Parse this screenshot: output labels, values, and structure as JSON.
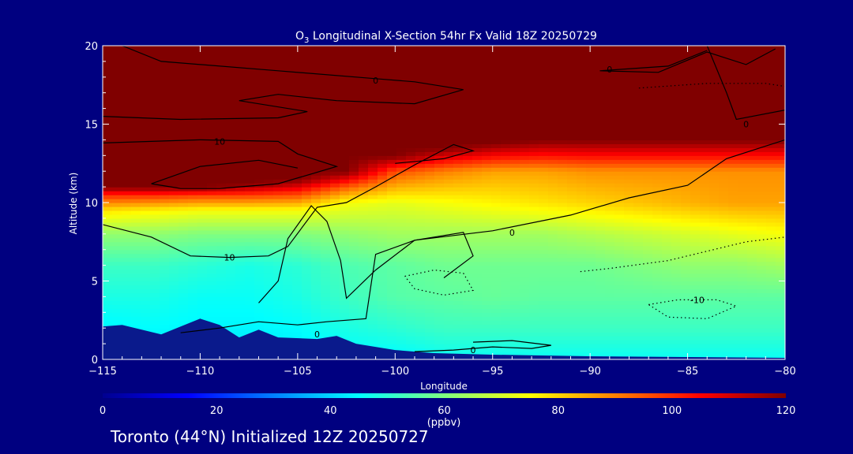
{
  "colors": {
    "background": "#000080",
    "text": "#ffffff",
    "terrain": "#0a1a8c",
    "contour": "#000000"
  },
  "chart_data": {
    "type": "heatmap",
    "title_prefix": "O",
    "title_subscript": "3",
    "title_rest": " Longitudinal X-Section 54hr  Fx Valid 18Z 20250729",
    "xlabel": "Longitude",
    "ylabel": "Altitude (km)",
    "xlim": [
      -115,
      -80
    ],
    "ylim": [
      0,
      20
    ],
    "x_ticks": [
      -115,
      -110,
      -105,
      -100,
      -95,
      -90,
      -85,
      -80
    ],
    "x_tick_labels": [
      "−115",
      "−110",
      "−105",
      "−100",
      "−95",
      "−90",
      "−85",
      "−80"
    ],
    "y_ticks": [
      0,
      5,
      10,
      15,
      20
    ],
    "y_tick_labels": [
      "0",
      "5",
      "10",
      "15",
      "20"
    ],
    "colorbar": {
      "min": 0,
      "max": 120,
      "ticks": [
        0,
        20,
        40,
        60,
        80,
        100,
        120
      ],
      "tick_labels": [
        "0",
        "20",
        "40",
        "60",
        "80",
        "100",
        "120"
      ],
      "units": "(ppbv)",
      "palette": [
        "#00008f",
        "#0000ff",
        "#0080ff",
        "#00ffff",
        "#80ff80",
        "#ffff00",
        "#ff8000",
        "#ff0000",
        "#800000"
      ]
    },
    "columns_lon": [
      -115,
      -112.5,
      -110,
      -107.5,
      -105,
      -102.5,
      -100,
      -97.5,
      -95,
      -92.5,
      -90,
      -87.5,
      -85,
      -82.5,
      -80
    ],
    "column_profiles_km_ppbv": [
      [
        [
          0,
          42
        ],
        [
          2,
          44
        ],
        [
          4,
          48
        ],
        [
          6,
          52
        ],
        [
          8,
          62
        ],
        [
          9.5,
          78
        ],
        [
          10.5,
          100
        ],
        [
          11,
          120
        ]
      ],
      [
        [
          0,
          42
        ],
        [
          2,
          45
        ],
        [
          4,
          48
        ],
        [
          6,
          52
        ],
        [
          8,
          62
        ],
        [
          9.5,
          76
        ],
        [
          10.5,
          100
        ],
        [
          11,
          120
        ]
      ],
      [
        [
          0,
          42
        ],
        [
          2,
          44
        ],
        [
          4,
          46
        ],
        [
          6,
          50
        ],
        [
          8,
          60
        ],
        [
          9.5,
          74
        ],
        [
          10.5,
          98
        ],
        [
          11,
          120
        ]
      ],
      [
        [
          0,
          42
        ],
        [
          2,
          44
        ],
        [
          4,
          46
        ],
        [
          6,
          48
        ],
        [
          8,
          60
        ],
        [
          9.5,
          74
        ],
        [
          10.5,
          98
        ],
        [
          11.2,
          120
        ]
      ],
      [
        [
          0,
          42
        ],
        [
          2,
          45
        ],
        [
          4,
          48
        ],
        [
          6,
          50
        ],
        [
          8,
          60
        ],
        [
          9.5,
          74
        ],
        [
          10.5,
          96
        ],
        [
          11.5,
          120
        ]
      ],
      [
        [
          0,
          44
        ],
        [
          2,
          48
        ],
        [
          4,
          52
        ],
        [
          6,
          54
        ],
        [
          8,
          62
        ],
        [
          10,
          74
        ],
        [
          11,
          94
        ],
        [
          12,
          120
        ]
      ],
      [
        [
          0,
          44
        ],
        [
          2,
          50
        ],
        [
          4,
          55
        ],
        [
          6,
          56
        ],
        [
          8,
          64
        ],
        [
          10,
          72
        ],
        [
          12,
          96
        ],
        [
          13,
          120
        ]
      ],
      [
        [
          0,
          46
        ],
        [
          2,
          52
        ],
        [
          4,
          56
        ],
        [
          6,
          58
        ],
        [
          8,
          64
        ],
        [
          10,
          74
        ],
        [
          12,
          90
        ],
        [
          13.5,
          120
        ]
      ],
      [
        [
          0,
          46
        ],
        [
          2,
          52
        ],
        [
          4,
          57
        ],
        [
          6,
          58
        ],
        [
          8,
          64
        ],
        [
          10,
          76
        ],
        [
          12,
          86
        ],
        [
          13.8,
          120
        ]
      ],
      [
        [
          0,
          46
        ],
        [
          2,
          52
        ],
        [
          4,
          56
        ],
        [
          6,
          58
        ],
        [
          8,
          64
        ],
        [
          10,
          78
        ],
        [
          12,
          86
        ],
        [
          14,
          120
        ]
      ],
      [
        [
          0,
          46
        ],
        [
          2,
          52
        ],
        [
          4,
          56
        ],
        [
          6,
          58
        ],
        [
          8,
          66
        ],
        [
          10,
          80
        ],
        [
          12,
          88
        ],
        [
          14,
          120
        ]
      ],
      [
        [
          0,
          46
        ],
        [
          2,
          52
        ],
        [
          4,
          56
        ],
        [
          6,
          60
        ],
        [
          8,
          68
        ],
        [
          10,
          82
        ],
        [
          12,
          88
        ],
        [
          14,
          120
        ]
      ],
      [
        [
          0,
          46
        ],
        [
          2,
          52
        ],
        [
          4,
          56
        ],
        [
          6,
          62
        ],
        [
          8,
          70
        ],
        [
          10,
          84
        ],
        [
          12,
          88
        ],
        [
          14,
          120
        ]
      ],
      [
        [
          0,
          46
        ],
        [
          2,
          52
        ],
        [
          4,
          56
        ],
        [
          6,
          62
        ],
        [
          8,
          72
        ],
        [
          10,
          86
        ],
        [
          12,
          88
        ],
        [
          14,
          120
        ]
      ],
      [
        [
          0,
          46
        ],
        [
          2,
          52
        ],
        [
          4,
          56
        ],
        [
          6,
          64
        ],
        [
          8,
          74
        ],
        [
          10,
          86
        ],
        [
          12,
          88
        ],
        [
          14,
          120
        ]
      ]
    ],
    "terrain_km": [
      [
        -115,
        2.1
      ],
      [
        -114,
        2.2
      ],
      [
        -112,
        1.6
      ],
      [
        -110,
        2.6
      ],
      [
        -109,
        2.2
      ],
      [
        -108,
        1.4
      ],
      [
        -107,
        1.9
      ],
      [
        -106,
        1.4
      ],
      [
        -104,
        1.3
      ],
      [
        -103,
        1.5
      ],
      [
        -102,
        1.0
      ],
      [
        -100,
        0.6
      ],
      [
        -98,
        0.4
      ],
      [
        -95,
        0.3
      ],
      [
        -90,
        0.2
      ],
      [
        -85,
        0.15
      ],
      [
        -80,
        0.1
      ]
    ],
    "contours": [
      {
        "label": "0",
        "dashed": false,
        "label_at": [
          -101,
          17.8
        ],
        "points": [
          [
            -114,
            20
          ],
          [
            -112,
            19
          ],
          [
            -106,
            18.4
          ],
          [
            -101,
            17.9
          ],
          [
            -99,
            17.7
          ],
          [
            -96.5,
            17.2
          ],
          [
            -99,
            16.3
          ],
          [
            -103,
            16.5
          ],
          [
            -106,
            16.9
          ],
          [
            -108,
            16.5
          ],
          [
            -104.5,
            15.8
          ],
          [
            -106,
            15.4
          ],
          [
            -111,
            15.3
          ],
          [
            -115,
            15.5
          ]
        ]
      },
      {
        "label": "10",
        "dashed": false,
        "label_at": [
          -109,
          13.9
        ],
        "points": [
          [
            -115,
            13.8
          ],
          [
            -110,
            14
          ],
          [
            -106,
            13.9
          ],
          [
            -105,
            13.1
          ],
          [
            -103,
            12.3
          ],
          [
            -106,
            11.2
          ],
          [
            -109,
            10.9
          ],
          [
            -111,
            10.9
          ],
          [
            -112.5,
            11.2
          ],
          [
            -110,
            12.3
          ],
          [
            -107,
            12.7
          ],
          [
            -105,
            12.2
          ]
        ]
      },
      {
        "label": "10",
        "dashed": false,
        "label_at": [
          -108.5,
          6.5
        ],
        "points": [
          [
            -115,
            8.6
          ],
          [
            -112.5,
            7.8
          ],
          [
            -110.5,
            6.6
          ],
          [
            -108.5,
            6.5
          ],
          [
            -106.5,
            6.6
          ],
          [
            -105.5,
            7.2
          ],
          [
            -104,
            9.7
          ],
          [
            -102.5,
            10
          ],
          [
            -101,
            11
          ],
          [
            -99,
            12.4
          ],
          [
            -97,
            13.7
          ],
          [
            -96,
            13.3
          ],
          [
            -97.5,
            12.8
          ],
          [
            -100,
            12.5
          ]
        ]
      },
      {
        "label": "0",
        "dashed": false,
        "label_at": [
          -94,
          8.1
        ],
        "points": [
          [
            -107,
            3.6
          ],
          [
            -106,
            5
          ],
          [
            -105.5,
            7.7
          ],
          [
            -104.3,
            9.8
          ],
          [
            -103.5,
            8.8
          ],
          [
            -102.8,
            6.3
          ],
          [
            -102.5,
            3.9
          ],
          [
            -101,
            5.7
          ],
          [
            -99,
            7.6
          ],
          [
            -95,
            8.2
          ],
          [
            -91,
            9.2
          ],
          [
            -88,
            10.3
          ],
          [
            -85,
            11.1
          ],
          [
            -83,
            12.8
          ],
          [
            -80,
            14
          ]
        ]
      },
      {
        "label": "0",
        "dashed": false,
        "label_at": [
          -104,
          1.6
        ],
        "points": [
          [
            -111,
            1.7
          ],
          [
            -109,
            2
          ],
          [
            -107,
            2.4
          ],
          [
            -105,
            2.2
          ],
          [
            -103.5,
            2.4
          ],
          [
            -101.5,
            2.6
          ],
          [
            -101,
            6.7
          ],
          [
            -99,
            7.6
          ],
          [
            -96.5,
            8.1
          ],
          [
            -96,
            6.6
          ],
          [
            -97.5,
            5.2
          ]
        ]
      },
      {
        "label": "0",
        "dashed": false,
        "label_at": [
          -96,
          0.6
        ],
        "points": [
          [
            -99,
            0.5
          ],
          [
            -97,
            0.6
          ],
          [
            -95,
            0.8
          ],
          [
            -93,
            0.7
          ],
          [
            -92,
            0.9
          ],
          [
            -94,
            1.2
          ],
          [
            -96,
            1.1
          ]
        ]
      },
      {
        "label": "-10",
        "dashed": true,
        "label_at": [
          -84.5,
          3.8
        ],
        "points": [
          [
            -87,
            3.5
          ],
          [
            -85.5,
            3.8
          ],
          [
            -83.5,
            3.8
          ],
          [
            -82.5,
            3.4
          ],
          [
            -84,
            2.6
          ],
          [
            -86,
            2.7
          ],
          [
            -87,
            3.5
          ]
        ]
      },
      {
        "label": "",
        "dashed": true,
        "label_at": null,
        "points": [
          [
            -99.5,
            5.3
          ],
          [
            -98,
            5.7
          ],
          [
            -96.5,
            5.5
          ],
          [
            -96,
            4.4
          ],
          [
            -97.5,
            4.1
          ],
          [
            -99,
            4.5
          ],
          [
            -99.5,
            5.3
          ]
        ]
      },
      {
        "label": "",
        "dashed": true,
        "label_at": null,
        "points": [
          [
            -90.5,
            5.6
          ],
          [
            -89,
            5.8
          ],
          [
            -86,
            6.3
          ],
          [
            -82,
            7.5
          ],
          [
            -80,
            7.8
          ]
        ]
      },
      {
        "label": "",
        "dashed": true,
        "label_at": null,
        "points": [
          [
            -87.5,
            17.3
          ],
          [
            -84,
            17.6
          ],
          [
            -81,
            17.6
          ],
          [
            -80,
            17.4
          ]
        ]
      },
      {
        "label": "0",
        "dashed": false,
        "label_at": [
          -89,
          18.5
        ],
        "points": [
          [
            -80.5,
            19.8
          ],
          [
            -82,
            18.8
          ],
          [
            -84,
            19.6
          ],
          [
            -86.5,
            18.3
          ],
          [
            -89.5,
            18.4
          ],
          [
            -86,
            18.7
          ],
          [
            -84,
            19.7
          ]
        ]
      },
      {
        "label": "0",
        "dashed": false,
        "label_at": [
          -82,
          15
        ],
        "points": [
          [
            -84,
            20
          ],
          [
            -83,
            17
          ],
          [
            -82.5,
            15.3
          ],
          [
            -80,
            15.9
          ]
        ]
      }
    ]
  },
  "footer": {
    "text": "Toronto (44°N) Initialized 12Z 20250727"
  }
}
